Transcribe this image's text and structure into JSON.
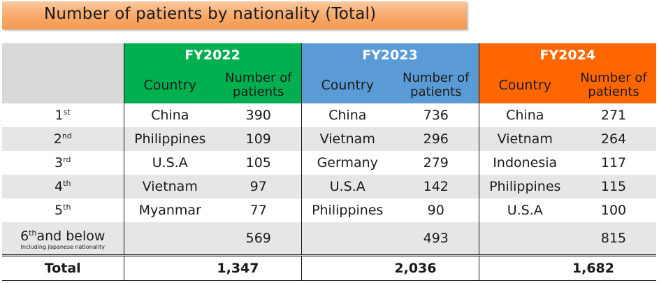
{
  "title": "Number of patients by nationality (Total)",
  "colors": {
    "fy2022": "#00b050",
    "fy2023": "#5b9bd5",
    "fy2024": "#ff6600",
    "corner": "#d9d9d9",
    "stripe": "#e6e6e6"
  },
  "years": [
    {
      "label": "FY2022",
      "country_header": "Country",
      "count_header_line1": "Number of",
      "count_header_line2": "patients"
    },
    {
      "label": "FY2023",
      "country_header": "Country",
      "count_header_line1": "Number of",
      "count_header_line2": "patients"
    },
    {
      "label": "FY2024",
      "country_header": "Country",
      "count_header_line1": "Number of",
      "count_header_line2": "patients"
    }
  ],
  "rows": [
    {
      "rank_num": "1",
      "rank_sup": "st",
      "cells": [
        {
          "country": "China",
          "count": "390"
        },
        {
          "country": "China",
          "count": "736"
        },
        {
          "country": "China",
          "count": "271"
        }
      ]
    },
    {
      "rank_num": "2",
      "rank_sup": "nd",
      "cells": [
        {
          "country": "Philippines",
          "count": "109"
        },
        {
          "country": "Vietnam",
          "count": "296"
        },
        {
          "country": "Vietnam",
          "count": "264"
        }
      ]
    },
    {
      "rank_num": "3",
      "rank_sup": "rd",
      "cells": [
        {
          "country": "U.S.A",
          "count": "105"
        },
        {
          "country": "Germany",
          "count": "279"
        },
        {
          "country": "Indonesia",
          "count": "117"
        }
      ]
    },
    {
      "rank_num": "4",
      "rank_sup": "th",
      "cells": [
        {
          "country": "Vietnam",
          "count": "97"
        },
        {
          "country": "U.S.A",
          "count": "142"
        },
        {
          "country": "Philippines",
          "count": "115"
        }
      ]
    },
    {
      "rank_num": "5",
      "rank_sup": "th",
      "cells": [
        {
          "country": "Myanmar",
          "count": "77"
        },
        {
          "country": "Philippines",
          "count": "90"
        },
        {
          "country": "U.S.A",
          "count": "100"
        }
      ]
    }
  ],
  "sixth": {
    "num": "6",
    "sup": "th",
    "label_rest": "and below",
    "note": "Including Japanese nationality",
    "counts": [
      "569",
      "493",
      "815"
    ]
  },
  "total": {
    "label": "Total",
    "counts": [
      "1,347",
      "2,036",
      "1,682"
    ]
  }
}
